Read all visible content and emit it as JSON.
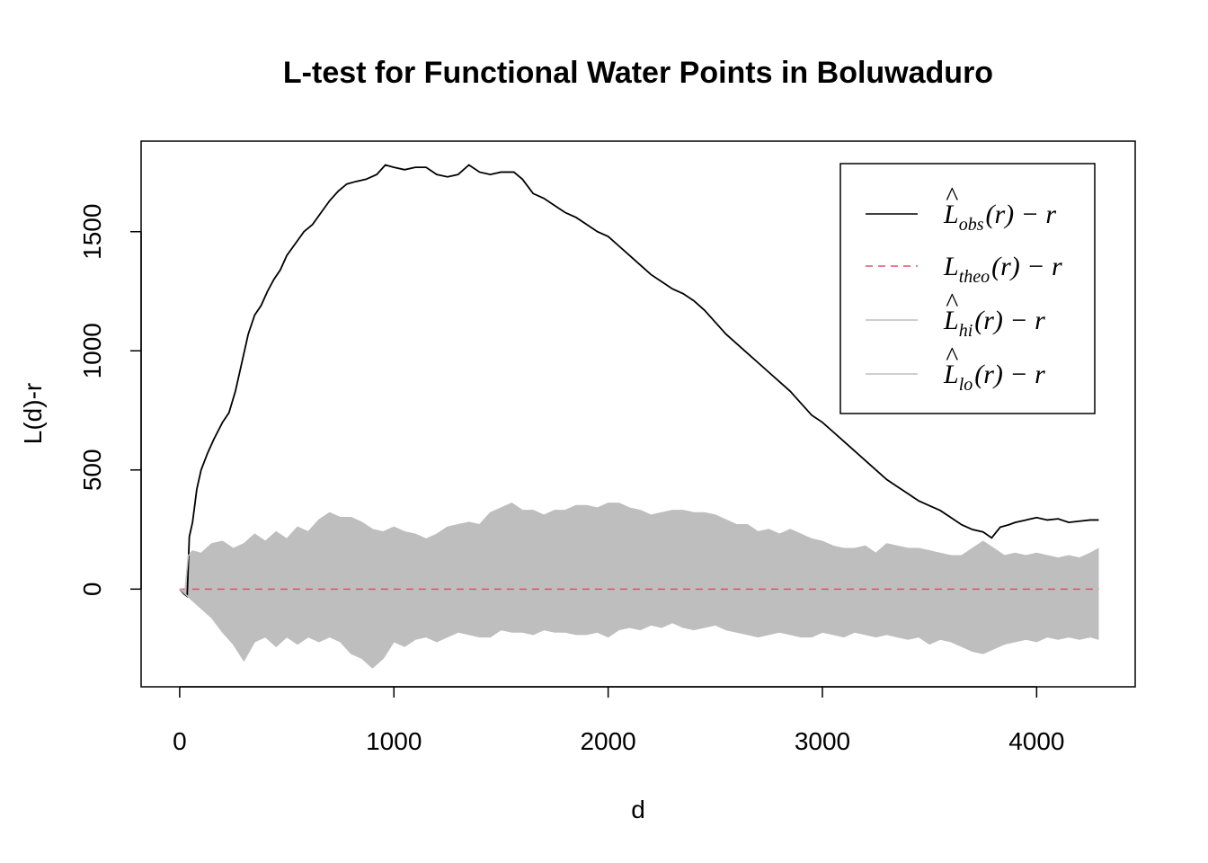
{
  "chart_data": {
    "type": "line",
    "title": "L-test for Functional Water Points in Boluwaduro",
    "xlabel": "d",
    "ylabel": "L(d)-r",
    "xlim": [
      -180,
      4460
    ],
    "ylim": [
      -410,
      1880
    ],
    "x_ticks": [
      0,
      1000,
      2000,
      3000,
      4000
    ],
    "y_ticks": [
      0,
      500,
      1000,
      1500
    ],
    "x_tick_labels": [
      "0",
      "1000",
      "2000",
      "3000",
      "4000"
    ],
    "y_tick_labels": [
      "0",
      "500",
      "1000",
      "1500"
    ],
    "grid": false,
    "legend_position": "top-right",
    "legend": [
      {
        "base": "L",
        "hat": true,
        "sub": "obs",
        "rest": "(r) − r",
        "color": "#000000",
        "dash": "none"
      },
      {
        "base": "L",
        "hat": false,
        "sub": "theo",
        "rest": "(r) − r",
        "color": "#DF536B",
        "dash": "8,6"
      },
      {
        "base": "L",
        "hat": true,
        "sub": "hi",
        "rest": "(r) − r",
        "color": "#BEBEBE",
        "dash": "none"
      },
      {
        "base": "L",
        "hat": true,
        "sub": "lo",
        "rest": "(r) − r",
        "color": "#BEBEBE",
        "dash": "none"
      }
    ],
    "series": [
      {
        "key": "obs",
        "color": "#000000",
        "points": [
          [
            0,
            0
          ],
          [
            20,
            -20
          ],
          [
            35,
            -30
          ],
          [
            45,
            220
          ],
          [
            60,
            280
          ],
          [
            80,
            420
          ],
          [
            100,
            500
          ],
          [
            130,
            570
          ],
          [
            160,
            630
          ],
          [
            200,
            700
          ],
          [
            230,
            740
          ],
          [
            260,
            830
          ],
          [
            290,
            950
          ],
          [
            320,
            1070
          ],
          [
            350,
            1150
          ],
          [
            380,
            1190
          ],
          [
            410,
            1250
          ],
          [
            440,
            1300
          ],
          [
            470,
            1340
          ],
          [
            500,
            1400
          ],
          [
            540,
            1450
          ],
          [
            580,
            1500
          ],
          [
            620,
            1530
          ],
          [
            660,
            1580
          ],
          [
            700,
            1630
          ],
          [
            740,
            1670
          ],
          [
            780,
            1700
          ],
          [
            820,
            1710
          ],
          [
            870,
            1720
          ],
          [
            920,
            1740
          ],
          [
            960,
            1780
          ],
          [
            1000,
            1770
          ],
          [
            1050,
            1760
          ],
          [
            1100,
            1770
          ],
          [
            1150,
            1770
          ],
          [
            1200,
            1740
          ],
          [
            1250,
            1730
          ],
          [
            1300,
            1740
          ],
          [
            1350,
            1780
          ],
          [
            1400,
            1750
          ],
          [
            1450,
            1740
          ],
          [
            1500,
            1750
          ],
          [
            1560,
            1750
          ],
          [
            1600,
            1720
          ],
          [
            1650,
            1660
          ],
          [
            1700,
            1640
          ],
          [
            1750,
            1610
          ],
          [
            1800,
            1580
          ],
          [
            1850,
            1560
          ],
          [
            1900,
            1530
          ],
          [
            1950,
            1500
          ],
          [
            2000,
            1480
          ],
          [
            2050,
            1440
          ],
          [
            2100,
            1400
          ],
          [
            2150,
            1360
          ],
          [
            2200,
            1320
          ],
          [
            2250,
            1290
          ],
          [
            2300,
            1260
          ],
          [
            2350,
            1240
          ],
          [
            2400,
            1210
          ],
          [
            2450,
            1170
          ],
          [
            2500,
            1120
          ],
          [
            2550,
            1070
          ],
          [
            2600,
            1030
          ],
          [
            2650,
            990
          ],
          [
            2700,
            950
          ],
          [
            2750,
            910
          ],
          [
            2800,
            870
          ],
          [
            2850,
            830
          ],
          [
            2900,
            780
          ],
          [
            2950,
            730
          ],
          [
            3000,
            700
          ],
          [
            3050,
            660
          ],
          [
            3100,
            620
          ],
          [
            3150,
            580
          ],
          [
            3200,
            540
          ],
          [
            3250,
            500
          ],
          [
            3300,
            460
          ],
          [
            3350,
            430
          ],
          [
            3400,
            400
          ],
          [
            3450,
            370
          ],
          [
            3500,
            350
          ],
          [
            3550,
            330
          ],
          [
            3600,
            300
          ],
          [
            3650,
            270
          ],
          [
            3700,
            250
          ],
          [
            3750,
            240
          ],
          [
            3790,
            215
          ],
          [
            3830,
            260
          ],
          [
            3870,
            270
          ],
          [
            3900,
            280
          ],
          [
            3950,
            290
          ],
          [
            4000,
            300
          ],
          [
            4050,
            290
          ],
          [
            4100,
            295
          ],
          [
            4150,
            280
          ],
          [
            4200,
            285
          ],
          [
            4250,
            290
          ],
          [
            4290,
            290
          ]
        ]
      },
      {
        "key": "theo",
        "color": "#DF536B",
        "points": [
          [
            0,
            0
          ],
          [
            4290,
            0
          ]
        ]
      },
      {
        "key": "hi",
        "color": "#BEBEBE",
        "points": [
          [
            0,
            0
          ],
          [
            25,
            -10
          ],
          [
            40,
            140
          ],
          [
            60,
            160
          ],
          [
            100,
            150
          ],
          [
            150,
            190
          ],
          [
            200,
            200
          ],
          [
            250,
            170
          ],
          [
            300,
            190
          ],
          [
            350,
            230
          ],
          [
            400,
            200
          ],
          [
            450,
            240
          ],
          [
            500,
            210
          ],
          [
            550,
            260
          ],
          [
            600,
            240
          ],
          [
            650,
            290
          ],
          [
            700,
            320
          ],
          [
            750,
            300
          ],
          [
            800,
            300
          ],
          [
            850,
            280
          ],
          [
            900,
            250
          ],
          [
            950,
            240
          ],
          [
            1000,
            260
          ],
          [
            1050,
            240
          ],
          [
            1100,
            230
          ],
          [
            1150,
            210
          ],
          [
            1200,
            230
          ],
          [
            1250,
            260
          ],
          [
            1300,
            270
          ],
          [
            1350,
            280
          ],
          [
            1400,
            270
          ],
          [
            1450,
            320
          ],
          [
            1500,
            340
          ],
          [
            1550,
            360
          ],
          [
            1600,
            330
          ],
          [
            1650,
            330
          ],
          [
            1700,
            310
          ],
          [
            1750,
            330
          ],
          [
            1800,
            330
          ],
          [
            1850,
            350
          ],
          [
            1900,
            350
          ],
          [
            1950,
            340
          ],
          [
            2000,
            360
          ],
          [
            2050,
            360
          ],
          [
            2100,
            340
          ],
          [
            2150,
            330
          ],
          [
            2200,
            310
          ],
          [
            2250,
            320
          ],
          [
            2300,
            330
          ],
          [
            2350,
            330
          ],
          [
            2400,
            320
          ],
          [
            2450,
            320
          ],
          [
            2500,
            310
          ],
          [
            2550,
            290
          ],
          [
            2600,
            270
          ],
          [
            2650,
            270
          ],
          [
            2700,
            240
          ],
          [
            2750,
            250
          ],
          [
            2800,
            230
          ],
          [
            2850,
            250
          ],
          [
            2900,
            230
          ],
          [
            2950,
            210
          ],
          [
            3000,
            200
          ],
          [
            3050,
            180
          ],
          [
            3100,
            170
          ],
          [
            3150,
            170
          ],
          [
            3200,
            180
          ],
          [
            3250,
            150
          ],
          [
            3300,
            190
          ],
          [
            3350,
            180
          ],
          [
            3400,
            170
          ],
          [
            3450,
            170
          ],
          [
            3500,
            160
          ],
          [
            3550,
            150
          ],
          [
            3600,
            140
          ],
          [
            3650,
            140
          ],
          [
            3700,
            170
          ],
          [
            3750,
            200
          ],
          [
            3800,
            170
          ],
          [
            3850,
            140
          ],
          [
            3900,
            150
          ],
          [
            3950,
            140
          ],
          [
            4000,
            150
          ],
          [
            4050,
            140
          ],
          [
            4100,
            130
          ],
          [
            4150,
            140
          ],
          [
            4200,
            130
          ],
          [
            4250,
            150
          ],
          [
            4290,
            170
          ]
        ]
      },
      {
        "key": "lo",
        "color": "#BEBEBE",
        "points": [
          [
            0,
            0
          ],
          [
            50,
            -40
          ],
          [
            100,
            -80
          ],
          [
            150,
            -120
          ],
          [
            200,
            -180
          ],
          [
            250,
            -230
          ],
          [
            300,
            -300
          ],
          [
            350,
            -220
          ],
          [
            400,
            -200
          ],
          [
            450,
            -240
          ],
          [
            500,
            -200
          ],
          [
            550,
            -230
          ],
          [
            600,
            -200
          ],
          [
            650,
            -220
          ],
          [
            700,
            -200
          ],
          [
            750,
            -220
          ],
          [
            800,
            -270
          ],
          [
            850,
            -290
          ],
          [
            900,
            -330
          ],
          [
            950,
            -290
          ],
          [
            1000,
            -220
          ],
          [
            1050,
            -240
          ],
          [
            1100,
            -210
          ],
          [
            1150,
            -200
          ],
          [
            1200,
            -220
          ],
          [
            1250,
            -200
          ],
          [
            1300,
            -180
          ],
          [
            1350,
            -190
          ],
          [
            1400,
            -200
          ],
          [
            1450,
            -200
          ],
          [
            1500,
            -170
          ],
          [
            1550,
            -180
          ],
          [
            1600,
            -180
          ],
          [
            1650,
            -190
          ],
          [
            1700,
            -170
          ],
          [
            1750,
            -180
          ],
          [
            1800,
            -180
          ],
          [
            1850,
            -190
          ],
          [
            1900,
            -190
          ],
          [
            1950,
            -180
          ],
          [
            2000,
            -200
          ],
          [
            2050,
            -170
          ],
          [
            2100,
            -160
          ],
          [
            2150,
            -170
          ],
          [
            2200,
            -150
          ],
          [
            2250,
            -160
          ],
          [
            2300,
            -140
          ],
          [
            2350,
            -160
          ],
          [
            2400,
            -170
          ],
          [
            2450,
            -160
          ],
          [
            2500,
            -150
          ],
          [
            2550,
            -170
          ],
          [
            2600,
            -180
          ],
          [
            2650,
            -190
          ],
          [
            2700,
            -200
          ],
          [
            2750,
            -190
          ],
          [
            2800,
            -180
          ],
          [
            2850,
            -190
          ],
          [
            2900,
            -200
          ],
          [
            2950,
            -200
          ],
          [
            3000,
            -180
          ],
          [
            3050,
            -190
          ],
          [
            3100,
            -200
          ],
          [
            3150,
            -180
          ],
          [
            3200,
            -190
          ],
          [
            3250,
            -200
          ],
          [
            3300,
            -190
          ],
          [
            3350,
            -200
          ],
          [
            3400,
            -210
          ],
          [
            3450,
            -200
          ],
          [
            3500,
            -230
          ],
          [
            3550,
            -210
          ],
          [
            3600,
            -220
          ],
          [
            3650,
            -240
          ],
          [
            3700,
            -260
          ],
          [
            3750,
            -270
          ],
          [
            3800,
            -250
          ],
          [
            3850,
            -230
          ],
          [
            3900,
            -220
          ],
          [
            3950,
            -210
          ],
          [
            4000,
            -220
          ],
          [
            4050,
            -200
          ],
          [
            4100,
            -210
          ],
          [
            4150,
            -200
          ],
          [
            4200,
            -210
          ],
          [
            4250,
            -200
          ],
          [
            4290,
            -210
          ]
        ]
      }
    ]
  }
}
